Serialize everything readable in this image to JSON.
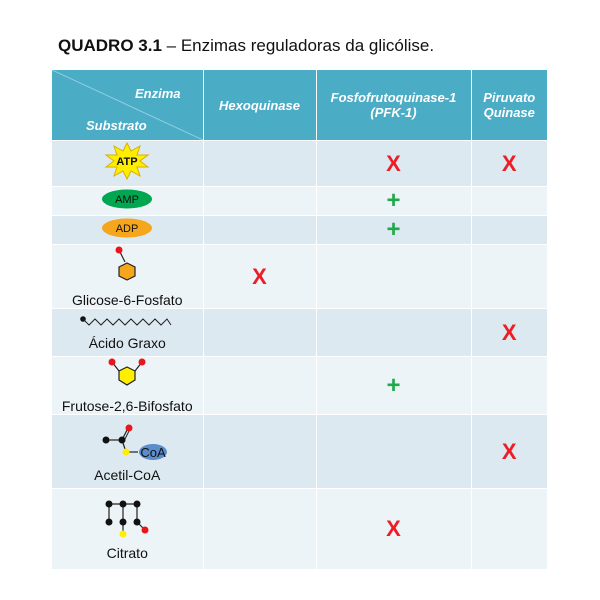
{
  "title": {
    "bold": "QUADRO 3.1",
    "rest": " – Enzimas reguladoras da glicólise."
  },
  "header": {
    "enzima": "Enzima",
    "substrato": "Substrato",
    "columns": [
      "Hexoquinase",
      "Fosfofrutoquinase-1 (PFK-1)",
      "Piruvato Quinase"
    ]
  },
  "rows": [
    {
      "substrate": "ATP",
      "marks": [
        "",
        "X",
        "X"
      ]
    },
    {
      "substrate": "AMP",
      "marks": [
        "",
        "+",
        ""
      ]
    },
    {
      "substrate": "ADP",
      "marks": [
        "",
        "+",
        ""
      ]
    },
    {
      "substrate": "Glicose-6-Fosfato",
      "marks": [
        "X",
        "",
        ""
      ]
    },
    {
      "substrate": "Ácido Graxo",
      "marks": [
        "",
        "",
        "X"
      ]
    },
    {
      "substrate": "Frutose-2,6-Bifosfato",
      "marks": [
        "",
        "+",
        ""
      ]
    },
    {
      "substrate": "Acetil-CoA",
      "coa_label": "CoA",
      "marks": [
        "",
        "",
        "X"
      ]
    },
    {
      "substrate": "Citrato",
      "marks": [
        "",
        "X",
        ""
      ]
    }
  ],
  "colors": {
    "header": "#4bacc6",
    "row_dark": "#dce9f0",
    "row_light": "#edf4f8",
    "inhibit": "#ee1c25",
    "activate": "#22a84a"
  }
}
